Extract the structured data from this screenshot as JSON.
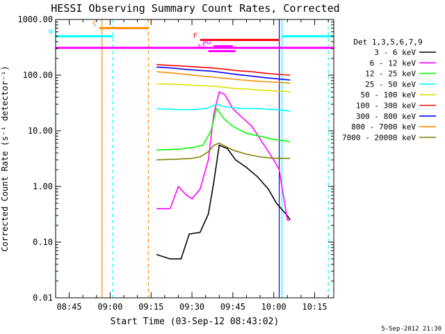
{
  "chart_data": {
    "type": "line",
    "title": "HESSI Observing Summary Count Rates, Corrected",
    "xlabel": "Start Time (03-Sep-12 08:43:02)",
    "ylabel": "Corrected Count Rate (s⁻¹ detector⁻¹)",
    "yscale": "log",
    "ylim": [
      0.01,
      1000
    ],
    "xlim": [
      "08:40",
      "10:22"
    ],
    "x_ticks": [
      "08:45",
      "09:00",
      "09:15",
      "09:30",
      "09:45",
      "10:00",
      "10:15"
    ],
    "y_ticks": [
      "0.01",
      "0.10",
      "1.00",
      "10.00",
      "100.00",
      "1000.00"
    ],
    "legend_title": "Det 1,3,5,6,7,9",
    "legend_position": "right",
    "footer": "5-Sep-2012 21:30",
    "series": [
      {
        "name": "3 - 6 keV",
        "color": "#000000",
        "x": [
          "09:17",
          "09:22",
          "09:26",
          "09:29",
          "09:33",
          "09:36",
          "09:38",
          "09:40",
          "09:43",
          "09:46",
          "09:50",
          "09:54",
          "09:58",
          "10:01",
          "10:05",
          "10:06"
        ],
        "y": [
          0.06,
          0.05,
          0.05,
          0.14,
          0.15,
          0.32,
          1.2,
          5.5,
          4.8,
          3.0,
          2.2,
          1.5,
          0.9,
          0.5,
          0.3,
          0.25
        ]
      },
      {
        "name": "6 - 12 keV",
        "color": "#ff00ff",
        "x": [
          "09:17",
          "09:22",
          "09:25",
          "09:28",
          "09:30",
          "09:33",
          "09:36",
          "09:38",
          "09:40",
          "09:42",
          "09:45",
          "09:48",
          "09:52",
          "09:56",
          "10:00",
          "10:02",
          "10:05",
          "10:06"
        ],
        "y": [
          0.4,
          0.4,
          1.0,
          0.7,
          0.6,
          0.9,
          3.0,
          20,
          50,
          45,
          25,
          18,
          12,
          6,
          3,
          2.0,
          0.25,
          0.25
        ]
      },
      {
        "name": "12 - 25 keV",
        "color": "#00ff00",
        "x": [
          "09:17",
          "09:25",
          "09:30",
          "09:34",
          "09:37",
          "09:39",
          "09:42",
          "09:45",
          "09:50",
          "09:55",
          "10:00",
          "10:05",
          "10:06"
        ],
        "y": [
          4.5,
          4.7,
          5.0,
          5.5,
          10,
          25,
          16,
          12,
          9,
          8,
          7,
          6.5,
          6.3
        ]
      },
      {
        "name": "25 - 50 keV",
        "color": "#00ffff",
        "x": [
          "09:17",
          "09:25",
          "09:30",
          "09:35",
          "09:39",
          "09:42",
          "09:45",
          "09:50",
          "09:55",
          "10:00",
          "10:05",
          "10:06"
        ],
        "y": [
          25,
          24,
          24,
          25,
          30,
          27,
          26,
          25,
          25,
          24,
          23,
          22
        ]
      },
      {
        "name": "50 - 100 keV",
        "color": "#e0e000",
        "x": [
          "09:17",
          "09:25",
          "09:30",
          "09:35",
          "09:40",
          "09:45",
          "09:50",
          "09:55",
          "10:00",
          "10:05",
          "10:06"
        ],
        "y": [
          70,
          68,
          66,
          64,
          62,
          58,
          56,
          54,
          52,
          51,
          50
        ]
      },
      {
        "name": "100 - 300 keV",
        "color": "#ff0000",
        "x": [
          "09:17",
          "09:22",
          "09:27",
          "09:32",
          "09:37",
          "09:42",
          "09:47",
          "09:52",
          "09:57",
          "10:02",
          "10:06"
        ],
        "y": [
          155,
          150,
          145,
          140,
          135,
          128,
          120,
          115,
          108,
          103,
          100
        ]
      },
      {
        "name": "300 - 800 keV",
        "color": "#0000ff",
        "x": [
          "09:17",
          "09:22",
          "09:27",
          "09:32",
          "09:37",
          "09:42",
          "09:47",
          "09:52",
          "09:57",
          "10:02",
          "10:06"
        ],
        "y": [
          140,
          135,
          128,
          122,
          118,
          110,
          102,
          96,
          90,
          85,
          82
        ]
      },
      {
        "name": "800 - 7000 keV",
        "color": "#ff8c00",
        "x": [
          "09:17",
          "09:22",
          "09:27",
          "09:32",
          "09:37",
          "09:42",
          "09:47",
          "09:52",
          "09:57",
          "10:02",
          "10:06"
        ],
        "y": [
          115,
          110,
          104,
          98,
          93,
          88,
          83,
          79,
          76,
          74,
          72
        ]
      },
      {
        "name": "7000 - 20000 keV",
        "color": "#808000",
        "x": [
          "09:17",
          "09:25",
          "09:30",
          "09:33",
          "09:36",
          "09:38",
          "09:40",
          "09:45",
          "09:50",
          "09:55",
          "10:00",
          "10:06"
        ],
        "y": [
          3.0,
          3.1,
          3.2,
          3.4,
          4.2,
          5.5,
          6.0,
          4.5,
          3.8,
          3.4,
          3.2,
          3.2
        ]
      }
    ],
    "annotations": [
      {
        "label": "S",
        "color": "#ff8c00",
        "x_start": "08:56",
        "x_end": "09:14",
        "y": 700
      },
      {
        "label": "N",
        "color": "#00ffff",
        "x_start": "08:40",
        "x_end": "09:01",
        "y": 500
      },
      {
        "label": "",
        "color": "#00ffff",
        "x_start": "10:03",
        "x_end": "10:22",
        "y": 500
      },
      {
        "label": "F",
        "color": "#ff0000",
        "x_start": "09:33",
        "x_end": "10:02",
        "y": 430
      },
      {
        "label": "AG",
        "color": "#ff00ff",
        "x_start": "09:38",
        "x_end": "09:45",
        "y": 330
      },
      {
        "label": "A1",
        "color": "#ff00ff",
        "x_start": "09:36",
        "x_end": "09:46",
        "y": 270
      },
      {
        "label": "",
        "color": "#ff00ff",
        "x_start": "08:40",
        "x_end": "10:22",
        "y": 310
      }
    ],
    "vertical_lines": [
      {
        "x": "08:40",
        "color": "#00ffff",
        "style": "solid"
      },
      {
        "x": "08:57",
        "color": "#ff8c00",
        "style": "solid"
      },
      {
        "x": "09:01",
        "color": "#00ffff",
        "style": "dashed"
      },
      {
        "x": "09:14",
        "color": "#ff8c00",
        "style": "dashed"
      },
      {
        "x": "10:02",
        "color": "#0000ff",
        "style": "solid"
      },
      {
        "x": "10:03",
        "color": "#00ffff",
        "style": "solid"
      },
      {
        "x": "10:20",
        "color": "#00ffff",
        "style": "dashed"
      }
    ]
  }
}
